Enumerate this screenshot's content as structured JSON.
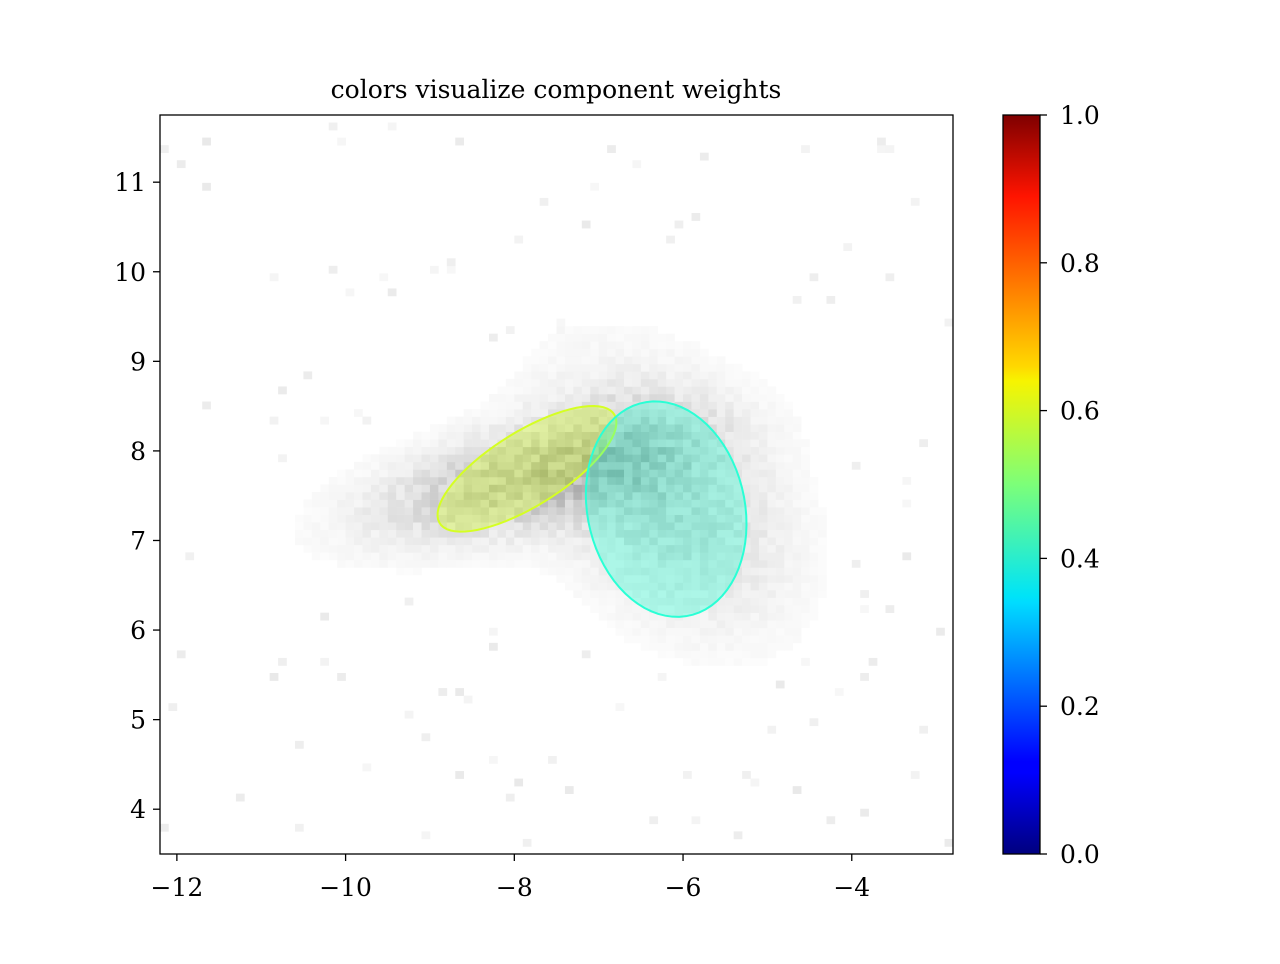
{
  "chart_data": {
    "type": "heatmap",
    "title": "colors visualize component weights",
    "xlabel": "",
    "ylabel": "",
    "xlim": [
      -12.2,
      -2.8
    ],
    "ylim": [
      3.5,
      11.75
    ],
    "xticks": [
      -12,
      -10,
      -8,
      -6,
      -4
    ],
    "yticks": [
      4,
      5,
      6,
      7,
      8,
      9,
      10,
      11
    ],
    "xtick_labels": [
      "−12",
      "−10",
      "−8",
      "−6",
      "−4"
    ],
    "ytick_labels": [
      "4",
      "5",
      "6",
      "7",
      "8",
      "9",
      "10",
      "11"
    ],
    "grid": false,
    "background": "2D histogram of samples, gray colormap",
    "density_clusters": [
      {
        "cx": -7.8,
        "cy": 7.7,
        "sx": 1.2,
        "sy": 0.45,
        "rho": 0.55,
        "weight": 0.6
      },
      {
        "cx": -6.2,
        "cy": 7.5,
        "sx": 0.9,
        "sy": 0.9,
        "rho": -0.35,
        "weight": 0.4
      }
    ],
    "components": [
      {
        "weight": 0.6,
        "mean": [
          -7.85,
          7.8
        ],
        "semi_axes": [
          1.2,
          0.42
        ],
        "angle_deg": 30,
        "color": "#d5ff22"
      },
      {
        "weight": 0.4,
        "mean": [
          -6.2,
          7.35
        ],
        "semi_axes": [
          1.22,
          0.93
        ],
        "angle_deg": -75,
        "color": "#2affd5"
      }
    ],
    "colorbar": {
      "colormap": "jet",
      "range": [
        0.0,
        1.0
      ],
      "ticks": [
        0.0,
        0.2,
        0.4,
        0.6,
        0.8,
        1.0
      ],
      "tick_labels": [
        "0.0",
        "0.2",
        "0.4",
        "0.6",
        "0.8",
        "1.0"
      ]
    }
  }
}
